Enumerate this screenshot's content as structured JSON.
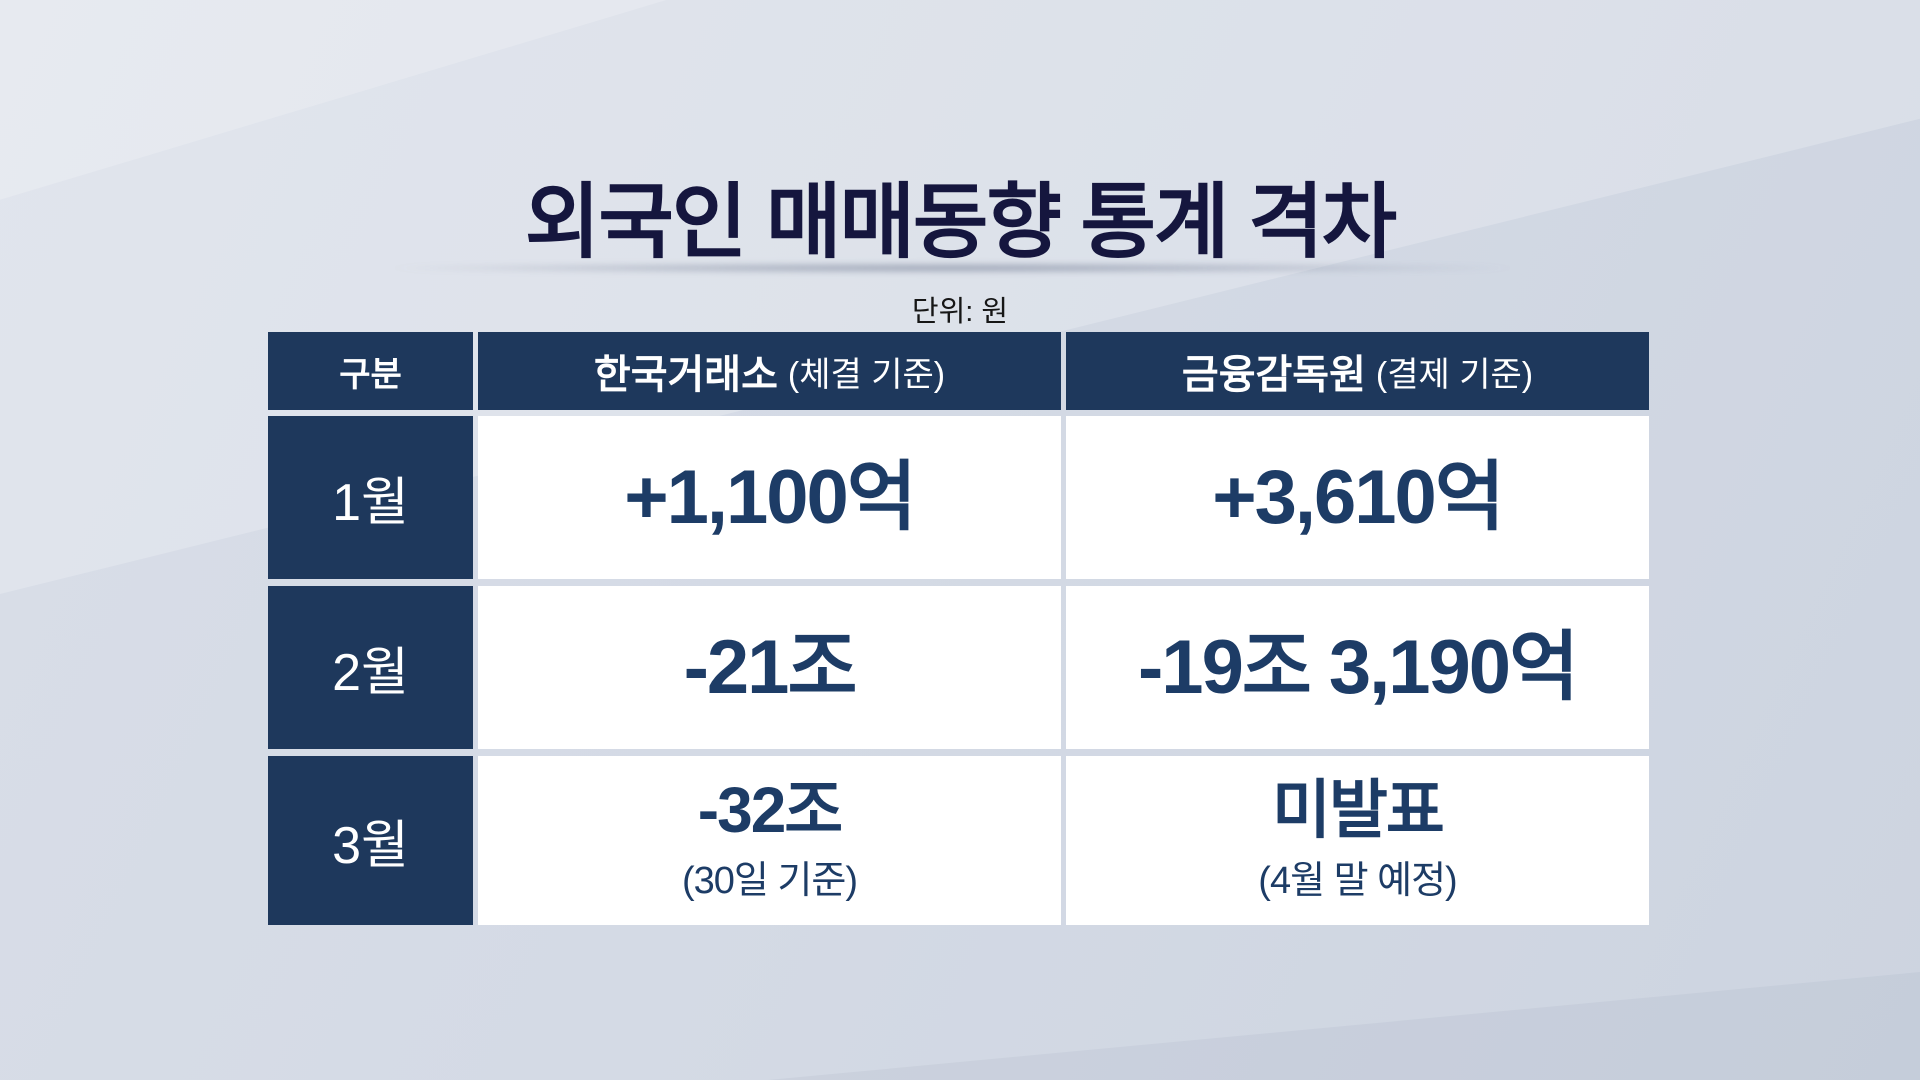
{
  "page": {
    "title": "외국인 매매동향 통계 격차",
    "unit_label": "단위: 원"
  },
  "colors": {
    "background": "#d4dae5",
    "header_navy": "#1e385c",
    "value_navy": "#1d3c66",
    "title_navy": "#15163e",
    "cell_white": "#ffffff"
  },
  "table": {
    "columns": [
      {
        "label": "구분",
        "note": ""
      },
      {
        "label": "한국거래소",
        "note": "(체결 기준)"
      },
      {
        "label": "금융감독원",
        "note": "(결제 기준)"
      }
    ],
    "rows": [
      {
        "month": "1월",
        "krx_value": "+1,100억",
        "fss_value": "+3,610억"
      },
      {
        "month": "2월",
        "krx_value": "-21조",
        "fss_value": "-19조 3,190억"
      },
      {
        "month": "3월",
        "krx_value": "-32조",
        "krx_note": "(30일 기준)",
        "fss_value": "미발표",
        "fss_note": "(4월 말 예정)"
      }
    ]
  },
  "chart_data": {
    "type": "table",
    "title": "외국인 매매동향 통계 격차",
    "unit": "단위: 원",
    "columns": [
      "구분",
      "한국거래소 (체결 기준)",
      "금융감독원 (결제 기준)"
    ],
    "rows": [
      [
        "1월",
        "+1,100억",
        "+3,610억"
      ],
      [
        "2월",
        "-21조",
        "-19조 3,190억"
      ],
      [
        "3월",
        "-32조 (30일 기준)",
        "미발표 (4월 말 예정)"
      ]
    ]
  }
}
